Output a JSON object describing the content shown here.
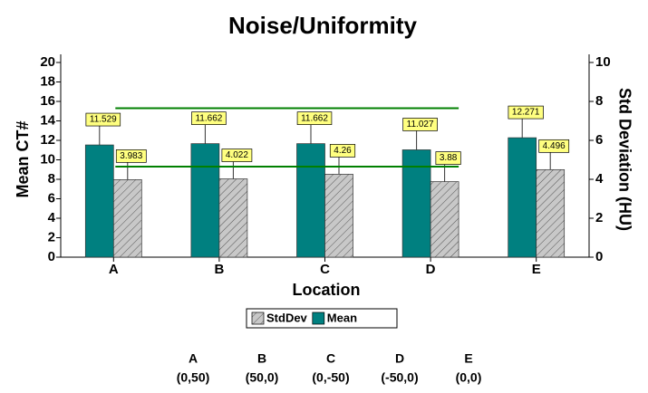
{
  "chart_data": {
    "type": "bar",
    "title": "Noise/Uniformity",
    "x_label": "Location",
    "y_label": "Mean CT#",
    "y2_label": "Std Deviation (HU)",
    "categories": [
      "A",
      "B",
      "C",
      "D",
      "E"
    ],
    "series": [
      {
        "name": "Mean",
        "color": "#008080",
        "values": [
          11.529,
          11.662,
          11.662,
          11.027,
          12.271
        ]
      },
      {
        "name": "StdDev",
        "color": "#c8c8c8",
        "hatch": true,
        "axis": "y2",
        "values": [
          3.983,
          4.022,
          4.26,
          3.88,
          4.496
        ]
      }
    ],
    "ylim": [
      0,
      20
    ],
    "yticks": [
      0,
      2,
      4,
      6,
      8,
      10,
      12,
      14,
      16,
      18,
      20
    ],
    "y2lim": [
      0,
      10
    ],
    "y2ticks": [
      0,
      2,
      4,
      6,
      8,
      10
    ],
    "reference_lines": [
      15.3,
      9.3
    ],
    "reference_color": "#008000",
    "grid": false,
    "legend": "bottom",
    "locations": [
      "(0,50)",
      "(50,0)",
      "(0,-50)",
      "(-50,0)",
      "(0,0)"
    ]
  }
}
